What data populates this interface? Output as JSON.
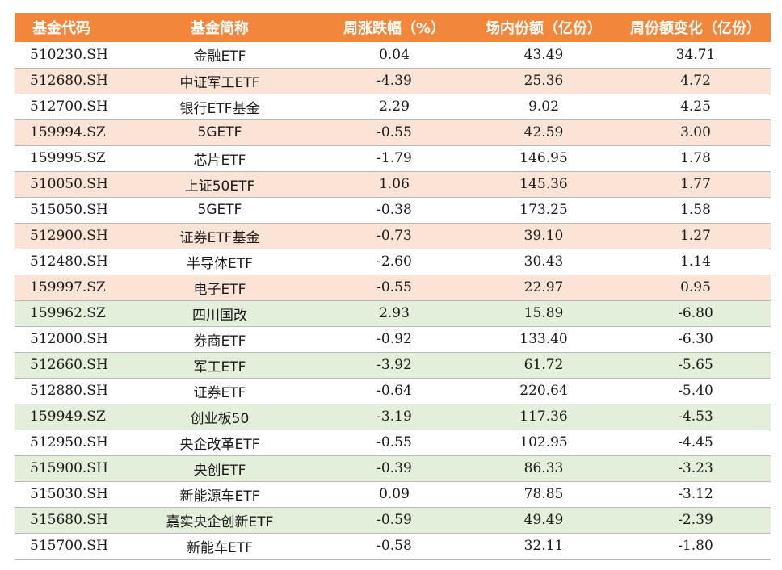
{
  "colors": {
    "header_bg": "#f2863a",
    "header_text": "#ffffff",
    "increase_row_bg": "#fbe3d6",
    "decrease_row_bg": "#e3efda",
    "plain_row_bg": "#ffffff"
  },
  "table": {
    "headers": [
      "基金代码",
      "基金简称",
      "周涨跌幅（%）",
      "场内份额（亿份）",
      "周份额变化（亿份）"
    ],
    "rows": [
      {
        "code": "510230.SH",
        "name": "金融ETF",
        "weekly_change": "0.04",
        "shares": "43.49",
        "share_change": "34.71",
        "band": "white"
      },
      {
        "code": "512680.SH",
        "name": "中证军工ETF",
        "weekly_change": "-4.39",
        "shares": "25.36",
        "share_change": "4.72",
        "band": "pink"
      },
      {
        "code": "512700.SH",
        "name": "银行ETF基金",
        "weekly_change": "2.29",
        "shares": "9.02",
        "share_change": "4.25",
        "band": "white"
      },
      {
        "code": "159994.SZ",
        "name": "5GETF",
        "weekly_change": "-0.55",
        "shares": "42.59",
        "share_change": "3.00",
        "band": "pink"
      },
      {
        "code": "159995.SZ",
        "name": "芯片ETF",
        "weekly_change": "-1.79",
        "shares": "146.95",
        "share_change": "1.78",
        "band": "white"
      },
      {
        "code": "510050.SH",
        "name": "上证50ETF",
        "weekly_change": "1.06",
        "shares": "145.36",
        "share_change": "1.77",
        "band": "pink"
      },
      {
        "code": "515050.SH",
        "name": "5GETF",
        "weekly_change": "-0.38",
        "shares": "173.25",
        "share_change": "1.58",
        "band": "white"
      },
      {
        "code": "512900.SH",
        "name": "证券ETF基金",
        "weekly_change": "-0.73",
        "shares": "39.10",
        "share_change": "1.27",
        "band": "pink"
      },
      {
        "code": "512480.SH",
        "name": "半导体ETF",
        "weekly_change": "-2.60",
        "shares": "30.43",
        "share_change": "1.14",
        "band": "white"
      },
      {
        "code": "159997.SZ",
        "name": "电子ETF",
        "weekly_change": "-0.55",
        "shares": "22.97",
        "share_change": "0.95",
        "band": "pink"
      },
      {
        "code": "159962.SZ",
        "name": "四川国改",
        "weekly_change": "2.93",
        "shares": "15.89",
        "share_change": "-6.80",
        "band": "green"
      },
      {
        "code": "512000.SH",
        "name": "券商ETF",
        "weekly_change": "-0.92",
        "shares": "133.40",
        "share_change": "-6.30",
        "band": "white"
      },
      {
        "code": "512660.SH",
        "name": "军工ETF",
        "weekly_change": "-3.92",
        "shares": "61.72",
        "share_change": "-5.65",
        "band": "green"
      },
      {
        "code": "512880.SH",
        "name": "证券ETF",
        "weekly_change": "-0.64",
        "shares": "220.64",
        "share_change": "-5.40",
        "band": "white"
      },
      {
        "code": "159949.SZ",
        "name": "创业板50",
        "weekly_change": "-3.19",
        "shares": "117.36",
        "share_change": "-4.53",
        "band": "green"
      },
      {
        "code": "512950.SH",
        "name": "央企改革ETF",
        "weekly_change": "-0.55",
        "shares": "102.95",
        "share_change": "-4.45",
        "band": "white"
      },
      {
        "code": "515900.SH",
        "name": "央创ETF",
        "weekly_change": "-0.39",
        "shares": "86.33",
        "share_change": "-3.23",
        "band": "green"
      },
      {
        "code": "515030.SH",
        "name": "新能源车ETF",
        "weekly_change": "0.09",
        "shares": "78.85",
        "share_change": "-3.12",
        "band": "white"
      },
      {
        "code": "515680.SH",
        "name": "嘉实央企创新ETF",
        "weekly_change": "-0.59",
        "shares": "49.49",
        "share_change": "-2.39",
        "band": "green"
      },
      {
        "code": "515700.SH",
        "name": "新能车ETF",
        "weekly_change": "-0.58",
        "shares": "32.11",
        "share_change": "-1.80",
        "band": "white"
      }
    ]
  }
}
